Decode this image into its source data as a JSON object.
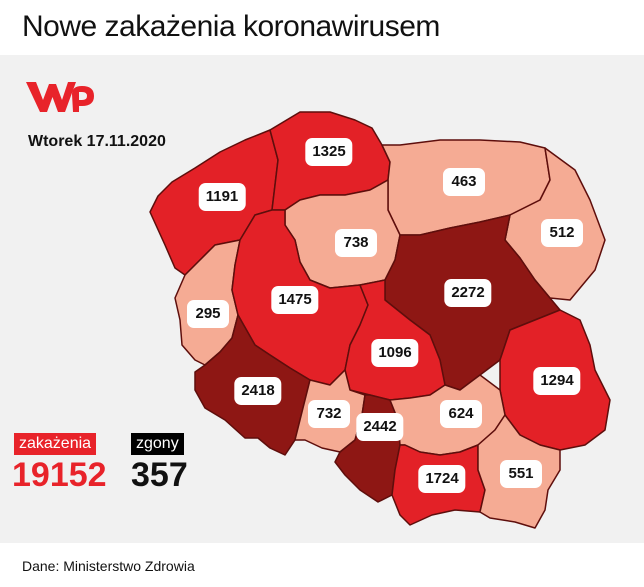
{
  "title": "Nowe zakażenia koronawirusem",
  "date": "Wtorek 17.11.2020",
  "logo": "wp-logo",
  "colors": {
    "light": "#f5ab94",
    "red": "#e32127",
    "dark": "#8e1714",
    "border": "#5e0e0c",
    "cases_accent": "#e8232a"
  },
  "regions": [
    {
      "id": "zachodniopomorskie",
      "value": "1191",
      "level": "red"
    },
    {
      "id": "pomorskie",
      "value": "1325",
      "level": "red"
    },
    {
      "id": "warminsko-mazurskie",
      "value": "463",
      "level": "light"
    },
    {
      "id": "podlaskie",
      "value": "512",
      "level": "light"
    },
    {
      "id": "kujawsko-pomorskie",
      "value": "738",
      "level": "light"
    },
    {
      "id": "mazowieckie",
      "value": "2272",
      "level": "dark"
    },
    {
      "id": "lubuskie",
      "value": "295",
      "level": "light"
    },
    {
      "id": "wielkopolskie",
      "value": "1475",
      "level": "red"
    },
    {
      "id": "lodzkie",
      "value": "1096",
      "level": "red"
    },
    {
      "id": "lubelskie",
      "value": "1294",
      "level": "red"
    },
    {
      "id": "dolnoslaskie",
      "value": "2418",
      "level": "dark"
    },
    {
      "id": "opolskie",
      "value": "732",
      "level": "light"
    },
    {
      "id": "slaskie",
      "value": "2442",
      "level": "dark"
    },
    {
      "id": "swietokrzyskie",
      "value": "624",
      "level": "light"
    },
    {
      "id": "malopolskie",
      "value": "1724",
      "level": "red"
    },
    {
      "id": "podkarpackie",
      "value": "551",
      "level": "light"
    }
  ],
  "totals": {
    "cases_label": "zakażenia",
    "cases_value": "19152",
    "deaths_label": "zgony",
    "deaths_value": "357"
  },
  "source": "Dane: Ministerstwo Zdrowia"
}
